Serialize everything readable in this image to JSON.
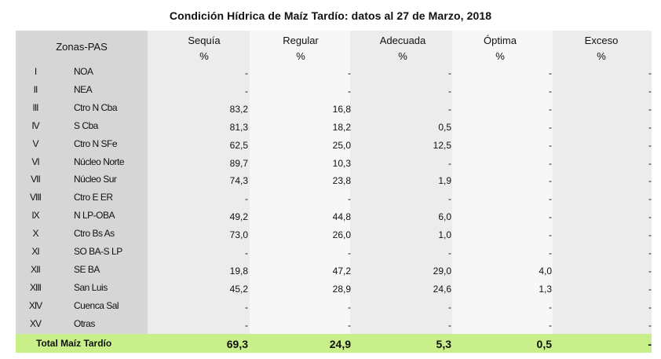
{
  "title": "Condición Hídrica de Maíz Tardío: datos al 27 de Marzo, 2018",
  "header": {
    "zona": "Zonas-PAS",
    "columns": [
      {
        "label": "Sequía",
        "unit": "%"
      },
      {
        "label": "Regular",
        "unit": "%"
      },
      {
        "label": "Adecuada",
        "unit": "%"
      },
      {
        "label": "Óptima",
        "unit": "%"
      },
      {
        "label": "Exceso",
        "unit": "%"
      }
    ]
  },
  "rows": [
    {
      "num": "I",
      "zona": "NOA",
      "v": [
        "-",
        "-",
        "-",
        "-",
        "-"
      ]
    },
    {
      "num": "II",
      "zona": "NEA",
      "v": [
        "-",
        "-",
        "-",
        "-",
        "-"
      ]
    },
    {
      "num": "III",
      "zona": "Ctro N Cba",
      "v": [
        "83,2",
        "16,8",
        "-",
        "-",
        "-"
      ]
    },
    {
      "num": "IV",
      "zona": "S Cba",
      "v": [
        "81,3",
        "18,2",
        "0,5",
        "-",
        "-"
      ]
    },
    {
      "num": "V",
      "zona": "Ctro N SFe",
      "v": [
        "62,5",
        "25,0",
        "12,5",
        "-",
        "-"
      ]
    },
    {
      "num": "VI",
      "zona": "Núcleo Norte",
      "v": [
        "89,7",
        "10,3",
        "-",
        "-",
        "-"
      ]
    },
    {
      "num": "VII",
      "zona": "Núcleo Sur",
      "v": [
        "74,3",
        "23,8",
        "1,9",
        "-",
        "-"
      ]
    },
    {
      "num": "VIII",
      "zona": "Ctro E ER",
      "v": [
        "-",
        "-",
        "-",
        "-",
        "-"
      ]
    },
    {
      "num": "IX",
      "zona": "N LP-OBA",
      "v": [
        "49,2",
        "44,8",
        "6,0",
        "-",
        "-"
      ]
    },
    {
      "num": "X",
      "zona": "Ctro Bs As",
      "v": [
        "73,0",
        "26,0",
        "1,0",
        "-",
        "-"
      ]
    },
    {
      "num": "XI",
      "zona": "SO BA-S LP",
      "v": [
        "-",
        "-",
        "-",
        "-",
        "-"
      ]
    },
    {
      "num": "XII",
      "zona": "SE BA",
      "v": [
        "19,8",
        "47,2",
        "29,0",
        "4,0",
        "-"
      ]
    },
    {
      "num": "XIII",
      "zona": "San Luis",
      "v": [
        "45,2",
        "28,9",
        "24,6",
        "1,3",
        "-"
      ]
    },
    {
      "num": "XIV",
      "zona": "Cuenca Sal",
      "v": [
        "-",
        "-",
        "-",
        "-",
        "-"
      ]
    },
    {
      "num": "XV",
      "zona": "Otras",
      "v": [
        "-",
        "-",
        "-",
        "-",
        "-"
      ]
    }
  ],
  "total": {
    "label": "Total Maíz Tardío",
    "v": [
      "69,3",
      "24,9",
      "5,3",
      "0,5",
      "-"
    ]
  },
  "colors": {
    "total_bg": "#c9ef8a",
    "zona_bg": "#d6d6d6",
    "col_dark": "#ececec",
    "col_light": "#f7f7f7"
  }
}
